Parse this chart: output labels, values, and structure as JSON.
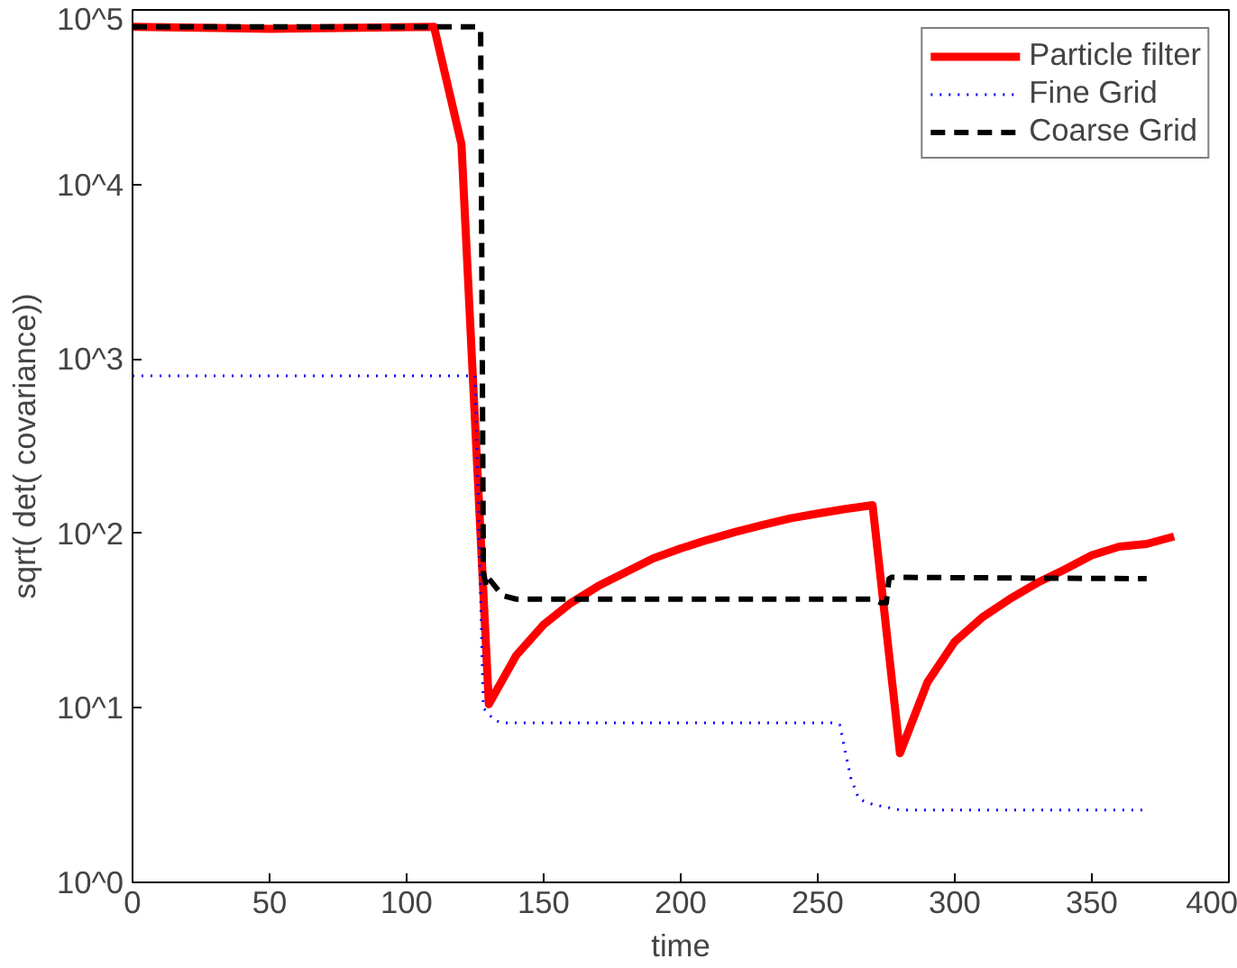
{
  "chart_data": {
    "type": "line",
    "xlabel": "time",
    "ylabel": "sqrt( det( covariance))",
    "log": "y",
    "xlim": [
      0,
      400
    ],
    "ylim": [
      1,
      100000
    ],
    "xticks": [
      0,
      50,
      100,
      150,
      200,
      250,
      300,
      350,
      400
    ],
    "yticks": [
      {
        "value": 1,
        "label": "10^0"
      },
      {
        "value": 10,
        "label": "10^1"
      },
      {
        "value": 100,
        "label": "10^2"
      },
      {
        "value": 1000,
        "label": "10^3"
      },
      {
        "value": 10000,
        "label": "10^4"
      },
      {
        "value": 100000,
        "label": "10^5"
      }
    ],
    "grid": false,
    "legend": "top right",
    "series": [
      {
        "name": "Particle filter",
        "color": "#ff0000",
        "line_style": "solid",
        "x": [
          0,
          50,
          110,
          120,
          130,
          140,
          150,
          160,
          170,
          180,
          190,
          200,
          210,
          220,
          230,
          240,
          250,
          260,
          270,
          280,
          290,
          300,
          310,
          320,
          330,
          340,
          350,
          360,
          370,
          380
        ],
        "values": [
          80000,
          78000,
          80000,
          17000,
          10.5,
          20,
          30,
          40,
          50,
          60,
          72,
          82,
          92,
          102,
          112,
          122,
          130,
          138,
          145,
          5.5,
          14,
          24,
          33,
          42,
          52,
          62,
          75,
          84,
          87,
          96
        ]
      },
      {
        "name": "Fine Grid",
        "color": "#0000ff",
        "line_style": "dotted",
        "x": [
          0,
          125,
          128,
          132,
          135,
          255,
          258,
          262,
          265,
          270,
          280,
          370
        ],
        "values": [
          800,
          800,
          10,
          8.5,
          8.2,
          8.2,
          8,
          4,
          3,
          2.8,
          2.6,
          2.6
        ]
      },
      {
        "name": "Coarse Grid",
        "color": "#000000",
        "line_style": "dashed",
        "x": [
          0,
          125,
          127,
          128,
          129,
          130,
          135,
          140,
          270,
          273,
          275,
          276,
          277,
          370
        ],
        "values": [
          80000,
          80000,
          78000,
          60,
          50,
          55,
          44,
          42,
          42,
          40,
          40,
          55,
          56,
          55
        ]
      }
    ]
  }
}
